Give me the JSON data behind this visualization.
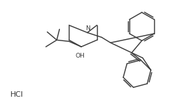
{
  "background_color": "#ffffff",
  "line_color": "#3a3a3a",
  "text_color": "#3a3a3a",
  "hcl_label": "HCl",
  "oh_label": "OH",
  "n_label": "N",
  "figsize": [
    2.47,
    1.56
  ],
  "dpi": 100,
  "lw": 1.05
}
